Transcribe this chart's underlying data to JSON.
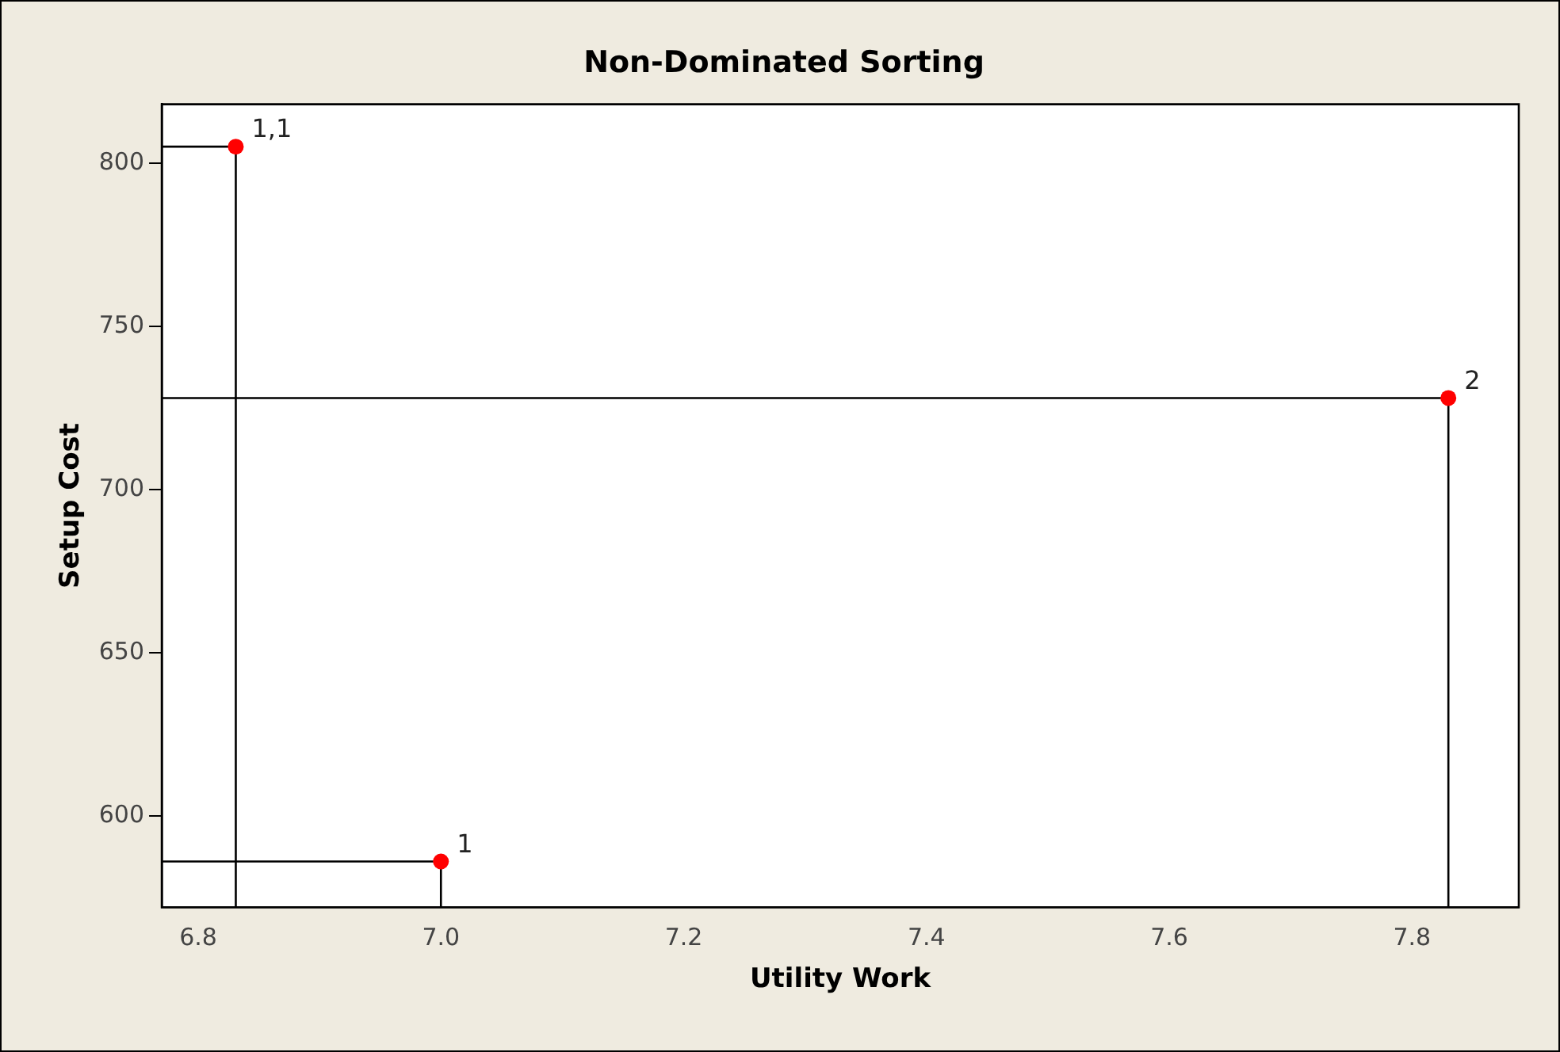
{
  "chart_data": {
    "type": "scatter",
    "title": "Non-Dominated Sorting",
    "xlabel": "Utility Work",
    "ylabel": "Setup Cost",
    "xlim": [
      6.77,
      7.888
    ],
    "ylim": [
      572,
      818
    ],
    "xticks": [
      6.8,
      {
        "value": 7,
        "label": "7.0"
      },
      7.2,
      7.4,
      7.6,
      7.8
    ],
    "yticks": [
      600,
      650,
      700,
      750,
      800
    ],
    "grid": false,
    "legend": false,
    "series": [
      {
        "type": "line",
        "color": "#000000",
        "x": [
          6.77,
          6.831,
          6.831
        ],
        "values": [
          805,
          805,
          572
        ],
        "marker": "none"
      },
      {
        "type": "line",
        "color": "#000000",
        "x": [
          6.77,
          7.0,
          7.0
        ],
        "values": [
          586,
          586,
          572
        ],
        "marker": "none"
      },
      {
        "type": "line",
        "color": "#000000",
        "x": [
          6.77,
          7.83,
          7.83
        ],
        "values": [
          728,
          728,
          572
        ],
        "marker": "none"
      },
      {
        "type": "scatter",
        "color": "#ff0000",
        "x": [
          6.831,
          7.0,
          7.83
        ],
        "values": [
          805,
          586,
          728
        ],
        "marker": "circle"
      }
    ],
    "annotations": [
      {
        "text": "1,1",
        "x": 6.831,
        "y": 805
      },
      {
        "text": "1",
        "x": 7.0,
        "y": 586
      },
      {
        "text": "2",
        "x": 7.83,
        "y": 728
      }
    ]
  }
}
